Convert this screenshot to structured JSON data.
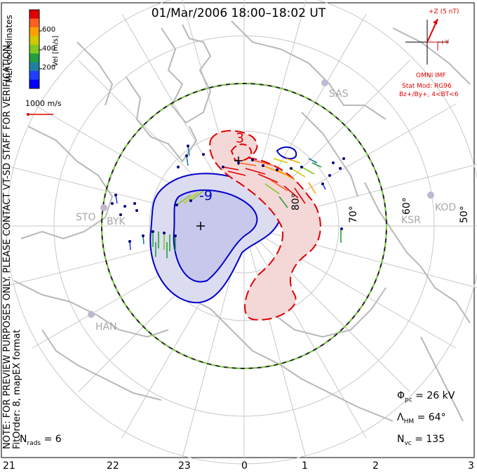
{
  "title": "01/Mar/2006  18:00–18:02  UT",
  "side_note": {
    "line1": "NOTE: FOR PREVIEW PURPOSES ONLY. PLEASE CONTACT VT-SD STAFF FOR VERIFICATION.",
    "line2": "FitOrder: 8, mapEX format"
  },
  "coord_label": "MLT coordinates",
  "colorbar": {
    "label": "Vel [m/s]",
    "ticks": [
      "600",
      "400",
      "200"
    ],
    "colors": [
      "#e00000",
      "#ff6020",
      "#ffa000",
      "#d0c800",
      "#80c820",
      "#20a040",
      "#2080a0",
      "#2040ff",
      "#0000ff"
    ]
  },
  "scale_vector": {
    "label": "1000 m/s",
    "color": "#e00000"
  },
  "imf": {
    "z_label": "+Z (5 nT)",
    "y_label": "+Y",
    "source": "OMNI IMF",
    "model": "Stat Mod: RG96",
    "condition": "Bz+/By+, 4<BT<6",
    "color": "#e00000"
  },
  "stations": [
    "SAS",
    "KOD",
    "KSR",
    "STO",
    "BYK",
    "HAN"
  ],
  "lat_labels": [
    "80°",
    "70°",
    "60°",
    "50°"
  ],
  "contours": [
    {
      "label": "-9",
      "color": "#0000c8"
    },
    {
      "label": "3",
      "color": "#e00000"
    }
  ],
  "stats": {
    "phi_pc": {
      "sym": "Φ",
      "sub": "pc",
      "value": "= 26 kV"
    },
    "lambda_hm": {
      "sym": "Λ",
      "sub": "HM",
      "value": "= 64°"
    },
    "n_vc": {
      "sym": "N",
      "sub": "vc",
      "value": "= 135"
    },
    "n_rads": {
      "sym": "N",
      "sub": "rads",
      "value": "= 6"
    }
  },
  "mlt_hours": [
    "21",
    "22",
    "23",
    "0",
    "1",
    "2",
    "3"
  ]
}
